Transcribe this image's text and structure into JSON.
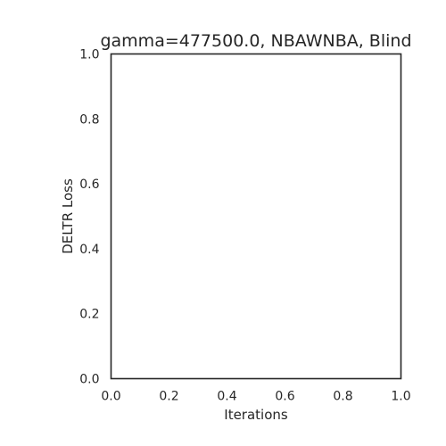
{
  "chart_data": {
    "type": "line",
    "title": "gamma=477500.0, NBAWNBA, Blind",
    "xlabel": "Iterations",
    "ylabel": "DELTR Loss",
    "xlim": [
      0.0,
      1.0
    ],
    "ylim": [
      0.0,
      1.0
    ],
    "xticks": [
      "0.0",
      "0.2",
      "0.4",
      "0.6",
      "0.8",
      "1.0"
    ],
    "yticks": [
      "0.0",
      "0.2",
      "0.4",
      "0.6",
      "0.8",
      "1.0"
    ],
    "grid": false,
    "series": [],
    "colors": {
      "axes": "#262626",
      "background": "#ffffff"
    }
  }
}
